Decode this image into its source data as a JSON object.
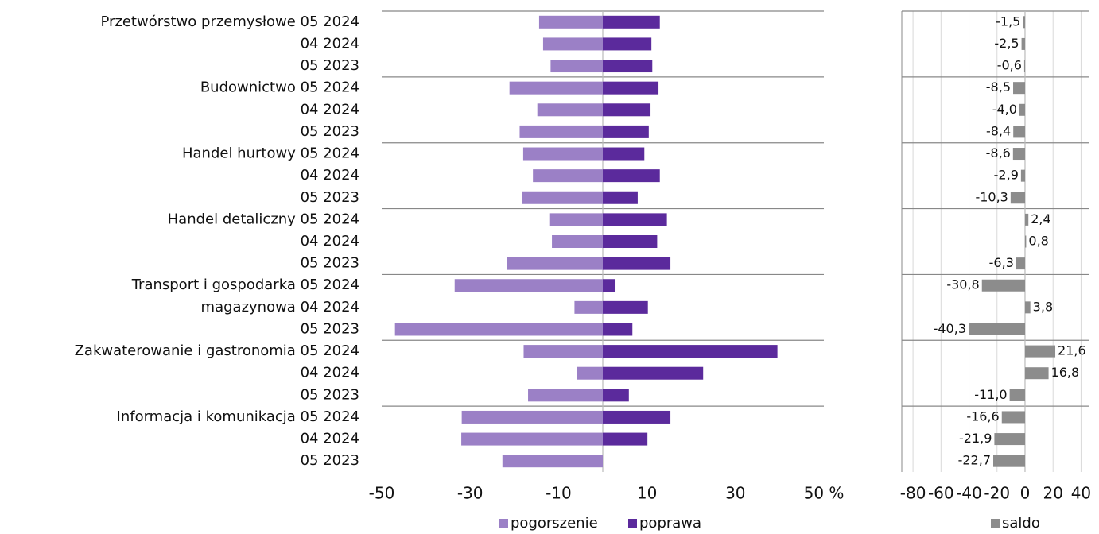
{
  "chart_data": [
    {
      "type": "hbar",
      "categories": [
        "Przetwórstwo przemysłowe 05 2024",
        "04 2024",
        "05 2023",
        "Budownictwo 05 2024",
        "04 2024",
        "05 2023",
        "Handel hurtowy 05 2024",
        "04 2024",
        "05 2023",
        "Handel detaliczny 05 2024",
        "04 2024",
        "05 2023",
        "Transport i gospodarka 05 2024",
        "magazynowa 04 2024",
        "05 2023",
        "Zakwaterowanie i gastronomia 05 2024",
        "04 2024",
        "05 2023",
        "Informacja i komunikacja 05 2024",
        "04 2024",
        "05 2023"
      ],
      "series": [
        {
          "name": "pogorszenie",
          "color": "#9b80c6",
          "values": [
            -14.4,
            -13.5,
            -11.8,
            -21.1,
            -14.8,
            -18.8,
            -18.0,
            -15.8,
            -18.2,
            -12.1,
            -11.5,
            -21.6,
            -33.5,
            -6.4,
            -47.0,
            -17.9,
            -5.9,
            -16.9,
            -31.9,
            -32.0,
            -22.7
          ]
        },
        {
          "name": "poprawa",
          "color": "#5b2a9c",
          "values": [
            12.9,
            11.0,
            11.2,
            12.6,
            10.8,
            10.4,
            9.4,
            12.9,
            7.9,
            14.5,
            12.3,
            15.3,
            2.7,
            10.2,
            6.7,
            39.5,
            22.7,
            5.9,
            15.3,
            10.1,
            0
          ]
        }
      ],
      "xlim": [
        -50,
        50
      ],
      "xticks": [
        -50,
        -30,
        -10,
        10,
        30,
        {
          "value": 50,
          "label": "50 %"
        }
      ]
    },
    {
      "type": "hbar",
      "series": [
        {
          "name": "saldo",
          "color": "#8c8c8c",
          "values": [
            -1.5,
            -2.5,
            -0.6,
            -8.5,
            -4.0,
            -8.4,
            -8.6,
            -2.9,
            -10.3,
            2.4,
            0.8,
            -6.3,
            -30.8,
            3.8,
            -40.3,
            21.6,
            16.8,
            -11.0,
            -16.6,
            -21.9,
            -22.7
          ],
          "value_labels": [
            "-1,5",
            "-2,5",
            "-0,6",
            "-8,5",
            "-4,0",
            "-8,4",
            "-8,6",
            "-2,9",
            "-10,3",
            "2,4",
            "0,8",
            "-6,3",
            "-30,8",
            "3,8",
            "-40,3",
            "21,6",
            "16,8",
            "-11,0",
            "-16,6",
            "-21,9",
            "-22,7"
          ]
        }
      ],
      "xlim": [
        -88,
        46
      ],
      "xticks": [
        -80,
        -60,
        -40,
        -20,
        0,
        20,
        40
      ],
      "grid": true
    }
  ]
}
